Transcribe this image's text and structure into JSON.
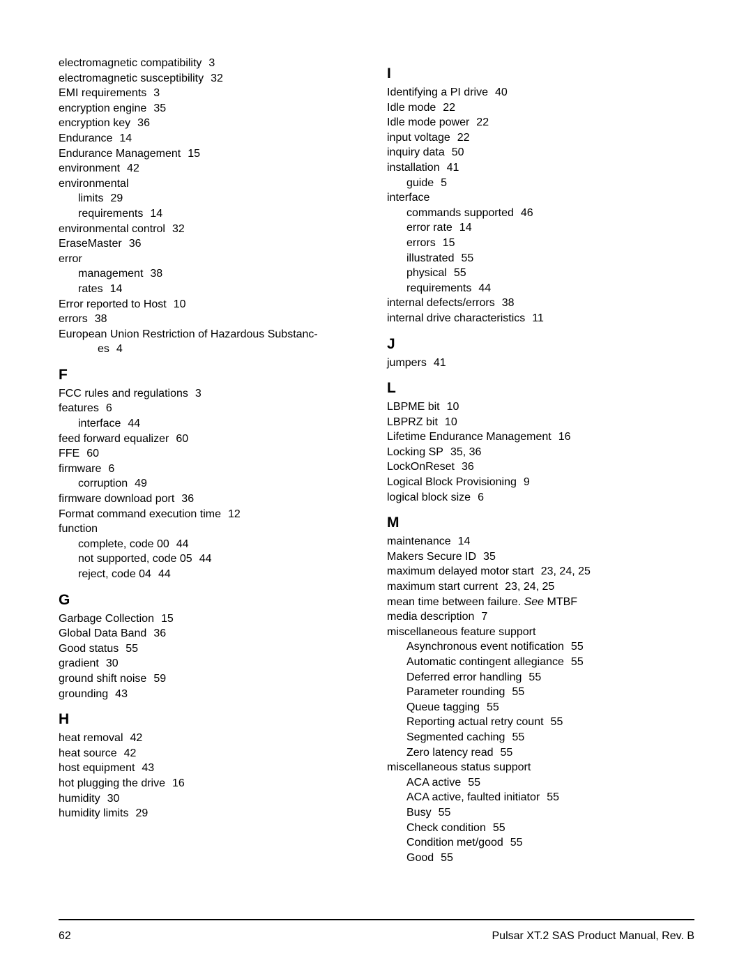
{
  "text_color": "#000000",
  "background_color": "#ffffff",
  "body_fontsize": 16,
  "heading_fontsize": 21,
  "footer": {
    "page_number": "62",
    "manual_title": "Pulsar XT.2 SAS Product Manual, Rev. B"
  },
  "columns": [
    {
      "items": [
        {
          "type": "entry",
          "indent": 0,
          "term": "electromagnetic compatibility",
          "pages": "3"
        },
        {
          "type": "entry",
          "indent": 0,
          "term": "electromagnetic susceptibility",
          "pages": "32"
        },
        {
          "type": "entry",
          "indent": 0,
          "term": "EMI requirements",
          "pages": "3"
        },
        {
          "type": "entry",
          "indent": 0,
          "term": "encryption engine",
          "pages": "35"
        },
        {
          "type": "entry",
          "indent": 0,
          "term": "encryption key",
          "pages": "36"
        },
        {
          "type": "entry",
          "indent": 0,
          "term": "Endurance",
          "pages": "14"
        },
        {
          "type": "entry",
          "indent": 0,
          "term": "Endurance Management",
          "pages": "15"
        },
        {
          "type": "entry",
          "indent": 0,
          "term": "environment",
          "pages": "42"
        },
        {
          "type": "entry",
          "indent": 0,
          "term": "environmental",
          "pages": ""
        },
        {
          "type": "entry",
          "indent": 1,
          "term": "limits",
          "pages": "29"
        },
        {
          "type": "entry",
          "indent": 1,
          "term": "requirements",
          "pages": "14"
        },
        {
          "type": "entry",
          "indent": 0,
          "term": "environmental control",
          "pages": "32"
        },
        {
          "type": "entry",
          "indent": 0,
          "term": "EraseMaster",
          "pages": "36"
        },
        {
          "type": "entry",
          "indent": 0,
          "term": "error",
          "pages": ""
        },
        {
          "type": "entry",
          "indent": 1,
          "term": "management",
          "pages": "38"
        },
        {
          "type": "entry",
          "indent": 1,
          "term": "rates",
          "pages": "14"
        },
        {
          "type": "entry",
          "indent": 0,
          "term": "Error reported to Host",
          "pages": "10"
        },
        {
          "type": "entry",
          "indent": 0,
          "term": "errors",
          "pages": "38"
        },
        {
          "type": "entry",
          "indent": 0,
          "term": "European Union Restriction of Hazardous Substanc-",
          "pages": ""
        },
        {
          "type": "entry",
          "indent": 2,
          "term": "es",
          "pages": "4"
        },
        {
          "type": "heading",
          "text": "F"
        },
        {
          "type": "entry",
          "indent": 0,
          "term": "FCC rules and regulations",
          "pages": "3"
        },
        {
          "type": "entry",
          "indent": 0,
          "term": "features",
          "pages": "6"
        },
        {
          "type": "entry",
          "indent": 1,
          "term": "interface",
          "pages": "44"
        },
        {
          "type": "entry",
          "indent": 0,
          "term": "feed forward equalizer",
          "pages": "60"
        },
        {
          "type": "entry",
          "indent": 0,
          "term": "FFE",
          "pages": "60"
        },
        {
          "type": "entry",
          "indent": 0,
          "term": "firmware",
          "pages": "6"
        },
        {
          "type": "entry",
          "indent": 1,
          "term": "corruption",
          "pages": "49"
        },
        {
          "type": "entry",
          "indent": 0,
          "term": "firmware download port",
          "pages": "36"
        },
        {
          "type": "entry",
          "indent": 0,
          "term": "Format command execution time",
          "pages": "12"
        },
        {
          "type": "entry",
          "indent": 0,
          "term": "function",
          "pages": ""
        },
        {
          "type": "entry",
          "indent": 1,
          "term": "complete, code 00",
          "pages": "44"
        },
        {
          "type": "entry",
          "indent": 1,
          "term": "not supported, code 05",
          "pages": "44"
        },
        {
          "type": "entry",
          "indent": 1,
          "term": "reject, code 04",
          "pages": "44"
        },
        {
          "type": "heading",
          "text": "G"
        },
        {
          "type": "entry",
          "indent": 0,
          "term": "Garbage Collection",
          "pages": "15"
        },
        {
          "type": "entry",
          "indent": 0,
          "term": "Global Data Band",
          "pages": "36"
        },
        {
          "type": "entry",
          "indent": 0,
          "term": "Good status",
          "pages": "55"
        },
        {
          "type": "entry",
          "indent": 0,
          "term": "gradient",
          "pages": "30"
        },
        {
          "type": "entry",
          "indent": 0,
          "term": "ground shift noise",
          "pages": "59"
        },
        {
          "type": "entry",
          "indent": 0,
          "term": "grounding",
          "pages": "43"
        },
        {
          "type": "heading",
          "text": "H"
        },
        {
          "type": "entry",
          "indent": 0,
          "term": "heat removal",
          "pages": "42"
        },
        {
          "type": "entry",
          "indent": 0,
          "term": "heat source",
          "pages": "42"
        },
        {
          "type": "entry",
          "indent": 0,
          "term": "host equipment",
          "pages": "43"
        },
        {
          "type": "entry",
          "indent": 0,
          "term": "hot plugging the drive",
          "pages": "16"
        },
        {
          "type": "entry",
          "indent": 0,
          "term": "humidity",
          "pages": "30"
        },
        {
          "type": "entry",
          "indent": 0,
          "term": "humidity limits",
          "pages": "29"
        }
      ]
    },
    {
      "items": [
        {
          "type": "heading",
          "text": "I"
        },
        {
          "type": "entry",
          "indent": 0,
          "term": "Identifying a PI drive",
          "pages": "40"
        },
        {
          "type": "entry",
          "indent": 0,
          "term": "Idle mode",
          "pages": "22"
        },
        {
          "type": "entry",
          "indent": 0,
          "term": "Idle mode power",
          "pages": "22"
        },
        {
          "type": "entry",
          "indent": 0,
          "term": "input voltage",
          "pages": "22"
        },
        {
          "type": "entry",
          "indent": 0,
          "term": "inquiry data",
          "pages": "50"
        },
        {
          "type": "entry",
          "indent": 0,
          "term": "installation",
          "pages": "41"
        },
        {
          "type": "entry",
          "indent": 1,
          "term": "guide",
          "pages": "5"
        },
        {
          "type": "entry",
          "indent": 0,
          "term": "interface",
          "pages": ""
        },
        {
          "type": "entry",
          "indent": 1,
          "term": "commands supported",
          "pages": "46"
        },
        {
          "type": "entry",
          "indent": 1,
          "term": "error rate",
          "pages": "14"
        },
        {
          "type": "entry",
          "indent": 1,
          "term": "errors",
          "pages": "15"
        },
        {
          "type": "entry",
          "indent": 1,
          "term": "illustrated",
          "pages": "55"
        },
        {
          "type": "entry",
          "indent": 1,
          "term": "physical",
          "pages": "55"
        },
        {
          "type": "entry",
          "indent": 1,
          "term": "requirements",
          "pages": "44"
        },
        {
          "type": "entry",
          "indent": 0,
          "term": "internal defects/errors",
          "pages": "38"
        },
        {
          "type": "entry",
          "indent": 0,
          "term": "internal drive characteristics",
          "pages": "11"
        },
        {
          "type": "heading",
          "text": "J"
        },
        {
          "type": "entry",
          "indent": 0,
          "term": "jumpers",
          "pages": "41"
        },
        {
          "type": "heading",
          "text": "L"
        },
        {
          "type": "entry",
          "indent": 0,
          "term": "LBPME bit",
          "pages": "10"
        },
        {
          "type": "entry",
          "indent": 0,
          "term": "LBPRZ bit",
          "pages": "10"
        },
        {
          "type": "entry",
          "indent": 0,
          "term": "Lifetime Endurance Management",
          "pages": "16"
        },
        {
          "type": "entry",
          "indent": 0,
          "term": "Locking SP",
          "pages": "35,   36"
        },
        {
          "type": "entry",
          "indent": 0,
          "term": "LockOnReset",
          "pages": "36"
        },
        {
          "type": "entry",
          "indent": 0,
          "term": "Logical Block Provisioning",
          "pages": "9"
        },
        {
          "type": "entry",
          "indent": 0,
          "term": "logical block size",
          "pages": "6"
        },
        {
          "type": "heading",
          "text": "M"
        },
        {
          "type": "entry",
          "indent": 0,
          "term": "maintenance",
          "pages": "14"
        },
        {
          "type": "entry",
          "indent": 0,
          "term": "Makers Secure ID",
          "pages": "35"
        },
        {
          "type": "entry",
          "indent": 0,
          "term": "maximum delayed motor start",
          "pages": "23,   24,   25"
        },
        {
          "type": "entry",
          "indent": 0,
          "term": "maximum start current",
          "pages": "23,   24,   25"
        },
        {
          "type": "entry",
          "indent": 0,
          "term": "mean time between failure.",
          "see": "See",
          "see_target": "MTBF"
        },
        {
          "type": "entry",
          "indent": 0,
          "term": "media description",
          "pages": "7"
        },
        {
          "type": "entry",
          "indent": 0,
          "term": "miscellaneous feature support",
          "pages": ""
        },
        {
          "type": "entry",
          "indent": 1,
          "term": "Asynchronous event notification",
          "pages": "55"
        },
        {
          "type": "entry",
          "indent": 1,
          "term": "Automatic contingent allegiance",
          "pages": "55"
        },
        {
          "type": "entry",
          "indent": 1,
          "term": "Deferred error handling",
          "pages": "55"
        },
        {
          "type": "entry",
          "indent": 1,
          "term": "Parameter rounding",
          "pages": "55"
        },
        {
          "type": "entry",
          "indent": 1,
          "term": "Queue tagging",
          "pages": "55"
        },
        {
          "type": "entry",
          "indent": 1,
          "term": "Reporting actual retry count",
          "pages": "55"
        },
        {
          "type": "entry",
          "indent": 1,
          "term": "Segmented caching",
          "pages": "55"
        },
        {
          "type": "entry",
          "indent": 1,
          "term": "Zero latency read",
          "pages": "55"
        },
        {
          "type": "entry",
          "indent": 0,
          "term": "miscellaneous status support",
          "pages": ""
        },
        {
          "type": "entry",
          "indent": 1,
          "term": "ACA active",
          "pages": "55"
        },
        {
          "type": "entry",
          "indent": 1,
          "term": "ACA active, faulted initiator",
          "pages": "55"
        },
        {
          "type": "entry",
          "indent": 1,
          "term": "Busy",
          "pages": "55"
        },
        {
          "type": "entry",
          "indent": 1,
          "term": "Check condition",
          "pages": "55"
        },
        {
          "type": "entry",
          "indent": 1,
          "term": "Condition met/good",
          "pages": "55"
        },
        {
          "type": "entry",
          "indent": 1,
          "term": "Good",
          "pages": "55"
        }
      ]
    }
  ]
}
